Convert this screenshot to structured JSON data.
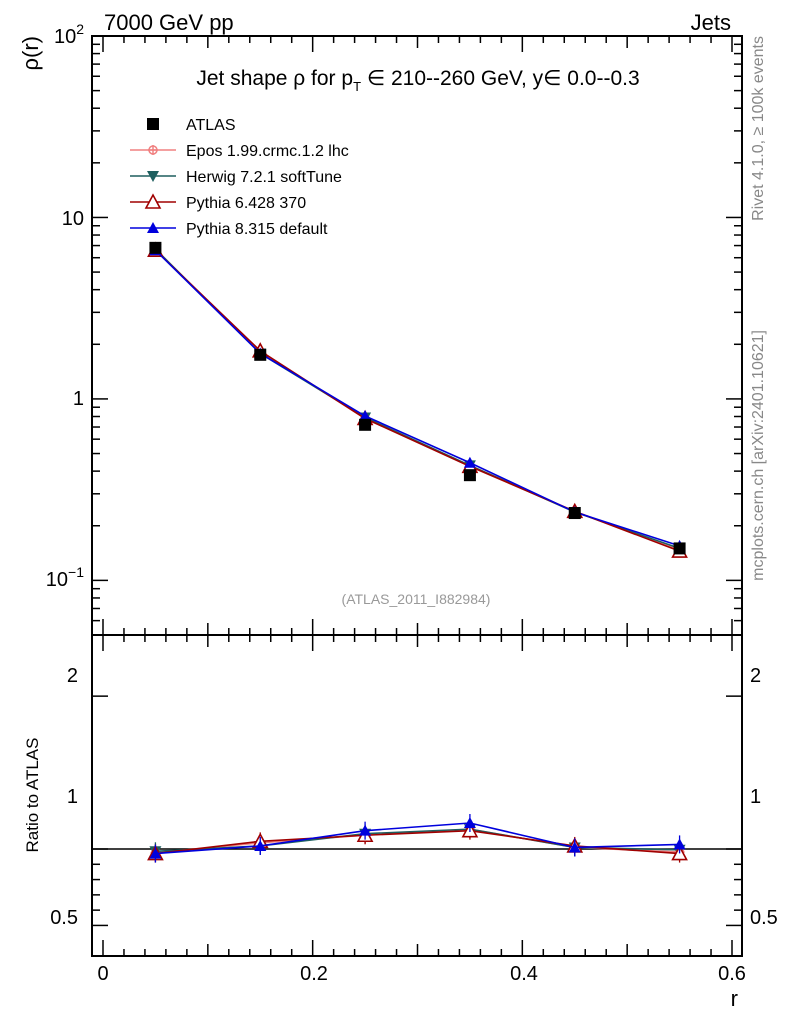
{
  "header": {
    "left": "7000 GeV pp",
    "right": "Jets"
  },
  "side": {
    "top": "Rivet 4.1.0, ≥ 100k events",
    "bottom": "mcplots.cern.ch [arXiv:2401.10621]"
  },
  "reference": "(ATLAS_2011_I882984)",
  "colors": {
    "atlas": "#000000",
    "epos": "#f08080",
    "herwig": "#1e5f5f",
    "pythia6": "#a00000",
    "pythia8": "#0000dd"
  },
  "chart_data": [
    {
      "type": "line",
      "title": "Jet shape ρ for p_T ∈ 210--260 GeV, y∈ 0.0--0.3",
      "title_parts": {
        "a": "Jet shape ρ for p",
        "sub": "T",
        "b": " ∈ 210--260 GeV, y∈ 0.0--0.3"
      },
      "xlabel": "r",
      "ylabel": "ρ(r)",
      "yscale": "log",
      "xlim": [
        0,
        0.6
      ],
      "ylim": [
        0.05,
        100
      ],
      "ytick_labels": [
        "10",
        "1"
      ],
      "ytick_exp_labels": [
        {
          "base": "10",
          "exp": "2"
        },
        {
          "base": "10",
          "exp": "−1"
        }
      ],
      "x": [
        0.05,
        0.15,
        0.25,
        0.35,
        0.45,
        0.55
      ],
      "series": [
        {
          "name": "ATLAS",
          "marker": "square",
          "values": [
            6.8,
            1.75,
            0.72,
            0.38,
            0.235,
            0.15
          ]
        },
        {
          "name": "Epos 1.99.crmc.1.2 lhc",
          "marker": "cross",
          "values": [
            6.65,
            1.82,
            0.78,
            0.43,
            0.24,
            0.147
          ]
        },
        {
          "name": "Herwig 7.2.1 softTune",
          "marker": "triangle-down",
          "values": [
            6.7,
            1.78,
            0.79,
            0.43,
            0.238,
            0.15
          ]
        },
        {
          "name": "Pythia 6.428 370",
          "marker": "triangle-open",
          "values": [
            6.6,
            1.84,
            0.78,
            0.425,
            0.24,
            0.145
          ]
        },
        {
          "name": "Pythia 8.315 default",
          "marker": "triangle-up",
          "values": [
            6.6,
            1.78,
            0.805,
            0.445,
            0.238,
            0.155
          ]
        }
      ]
    },
    {
      "type": "line",
      "title": "",
      "xlabel": "r",
      "ylabel": "Ratio to ATLAS",
      "xlim": [
        0,
        0.6
      ],
      "ylim": [
        0.3,
        2.4
      ],
      "xtick_labels": [
        "0",
        "0.2",
        "0.4",
        "0.6"
      ],
      "ytick_labels": [
        "0.5",
        "1",
        "2"
      ],
      "x": [
        0.05,
        0.15,
        0.25,
        0.35,
        0.45,
        0.55
      ],
      "series": [
        {
          "name": "Epos 1.99.crmc.1.2 lhc",
          "values": [
            0.975,
            1.04,
            1.09,
            1.13,
            1.01,
            0.98
          ]
        },
        {
          "name": "Herwig 7.2.1 softTune",
          "values": [
            0.985,
            1.02,
            1.1,
            1.13,
            1.01,
            0.995
          ]
        },
        {
          "name": "Pythia 6.428 370",
          "values": [
            0.97,
            1.05,
            1.09,
            1.12,
            1.02,
            0.97
          ]
        },
        {
          "name": "Pythia 8.315 default",
          "values": [
            0.97,
            1.02,
            1.12,
            1.17,
            1.01,
            1.03
          ]
        }
      ]
    }
  ]
}
